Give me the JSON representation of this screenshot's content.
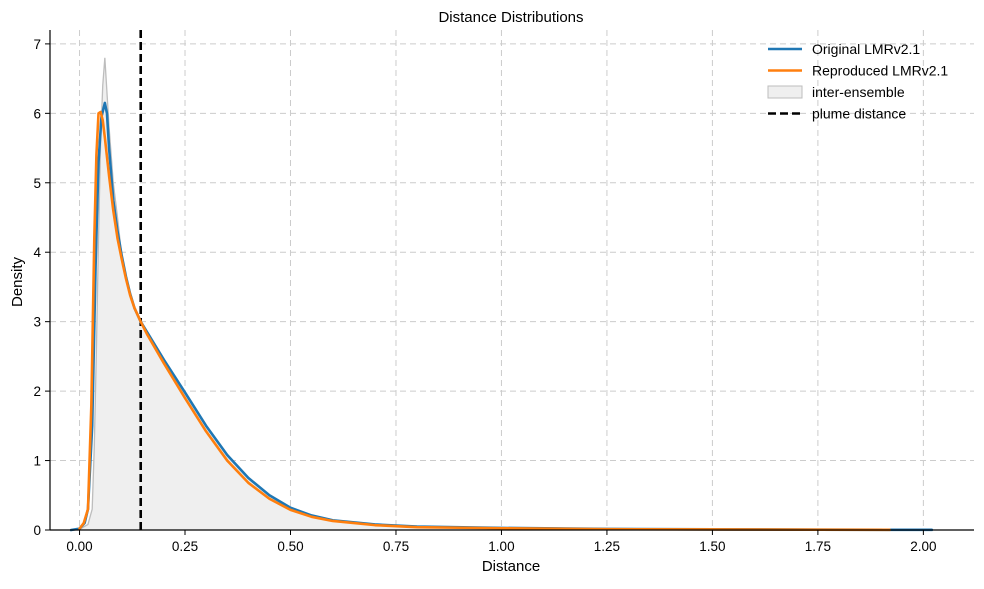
{
  "chart_data": {
    "type": "line",
    "title": "Distance Distributions",
    "xlabel": "Distance",
    "ylabel": "Density",
    "xlim": [
      -0.07,
      2.12
    ],
    "ylim": [
      0,
      7.2
    ],
    "x_ticks": [
      0.0,
      0.25,
      0.5,
      0.75,
      1.0,
      1.25,
      1.5,
      1.75,
      2.0
    ],
    "x_tick_labels": [
      "0.00",
      "0.25",
      "0.50",
      "0.75",
      "1.00",
      "1.25",
      "1.50",
      "1.75",
      "2.00"
    ],
    "y_ticks": [
      0,
      1,
      2,
      3,
      4,
      5,
      6,
      7
    ],
    "y_tick_labels": [
      "0",
      "1",
      "2",
      "3",
      "4",
      "5",
      "6",
      "7"
    ],
    "grid": true,
    "legend_position": "top-right",
    "vertical_line": {
      "name": "plume distance",
      "x": 0.145,
      "color": "#000000",
      "style": "dashed"
    },
    "series": [
      {
        "name": "Original LMRv2.1",
        "kind": "line",
        "color": "#1f77b4",
        "points": [
          [
            -0.02,
            0.0
          ],
          [
            0.0,
            0.02
          ],
          [
            0.012,
            0.1
          ],
          [
            0.02,
            0.3
          ],
          [
            0.03,
            1.5
          ],
          [
            0.038,
            3.8
          ],
          [
            0.045,
            5.3
          ],
          [
            0.052,
            5.95
          ],
          [
            0.06,
            6.15
          ],
          [
            0.065,
            6.0
          ],
          [
            0.07,
            5.5
          ],
          [
            0.08,
            4.75
          ],
          [
            0.09,
            4.3
          ],
          [
            0.1,
            3.95
          ],
          [
            0.11,
            3.65
          ],
          [
            0.12,
            3.4
          ],
          [
            0.13,
            3.2
          ],
          [
            0.145,
            3.0
          ],
          [
            0.16,
            2.85
          ],
          [
            0.2,
            2.45
          ],
          [
            0.25,
            1.98
          ],
          [
            0.3,
            1.5
          ],
          [
            0.35,
            1.08
          ],
          [
            0.4,
            0.75
          ],
          [
            0.45,
            0.5
          ],
          [
            0.5,
            0.32
          ],
          [
            0.55,
            0.21
          ],
          [
            0.6,
            0.14
          ],
          [
            0.7,
            0.08
          ],
          [
            0.8,
            0.05
          ],
          [
            1.0,
            0.03
          ],
          [
            1.25,
            0.015
          ],
          [
            1.5,
            0.01
          ],
          [
            1.75,
            0.005
          ],
          [
            2.02,
            0.002
          ]
        ]
      },
      {
        "name": "Reproduced LMRv2.1",
        "kind": "line",
        "color": "#ff7f0e",
        "points": [
          [
            0.0,
            0.02
          ],
          [
            0.01,
            0.1
          ],
          [
            0.02,
            0.3
          ],
          [
            0.028,
            1.8
          ],
          [
            0.035,
            4.2
          ],
          [
            0.04,
            5.4
          ],
          [
            0.045,
            6.0
          ],
          [
            0.05,
            6.02
          ],
          [
            0.055,
            5.9
          ],
          [
            0.06,
            5.65
          ],
          [
            0.07,
            5.1
          ],
          [
            0.08,
            4.6
          ],
          [
            0.09,
            4.2
          ],
          [
            0.1,
            3.9
          ],
          [
            0.11,
            3.62
          ],
          [
            0.12,
            3.38
          ],
          [
            0.13,
            3.2
          ],
          [
            0.145,
            3.0
          ],
          [
            0.16,
            2.82
          ],
          [
            0.2,
            2.4
          ],
          [
            0.25,
            1.9
          ],
          [
            0.3,
            1.42
          ],
          [
            0.35,
            1.0
          ],
          [
            0.4,
            0.68
          ],
          [
            0.45,
            0.45
          ],
          [
            0.5,
            0.29
          ],
          [
            0.55,
            0.19
          ],
          [
            0.6,
            0.13
          ],
          [
            0.7,
            0.07
          ],
          [
            0.8,
            0.04
          ],
          [
            1.0,
            0.025
          ],
          [
            1.25,
            0.012
          ],
          [
            1.5,
            0.008
          ],
          [
            1.75,
            0.004
          ],
          [
            1.92,
            0.002
          ]
        ]
      },
      {
        "name": "inter-ensemble",
        "kind": "area",
        "color": "#aaaaaa",
        "points": [
          [
            -0.02,
            0.0
          ],
          [
            0.0,
            0.01
          ],
          [
            0.02,
            0.08
          ],
          [
            0.03,
            0.3
          ],
          [
            0.035,
            1.2
          ],
          [
            0.04,
            2.6
          ],
          [
            0.045,
            4.2
          ],
          [
            0.05,
            5.6
          ],
          [
            0.055,
            6.4
          ],
          [
            0.06,
            6.8
          ],
          [
            0.065,
            6.3
          ],
          [
            0.07,
            5.8
          ],
          [
            0.08,
            5.0
          ],
          [
            0.09,
            4.5
          ],
          [
            0.1,
            3.95
          ],
          [
            0.11,
            3.65
          ],
          [
            0.12,
            3.4
          ],
          [
            0.13,
            3.2
          ],
          [
            0.145,
            3.0
          ],
          [
            0.16,
            2.85
          ],
          [
            0.2,
            2.45
          ],
          [
            0.25,
            1.98
          ],
          [
            0.3,
            1.5
          ],
          [
            0.35,
            1.08
          ],
          [
            0.4,
            0.75
          ],
          [
            0.45,
            0.5
          ],
          [
            0.5,
            0.32
          ],
          [
            0.55,
            0.21
          ],
          [
            0.6,
            0.14
          ],
          [
            0.7,
            0.08
          ],
          [
            0.8,
            0.05
          ],
          [
            1.0,
            0.03
          ],
          [
            1.25,
            0.015
          ],
          [
            1.5,
            0.01
          ],
          [
            1.75,
            0.005
          ],
          [
            2.0,
            0.002
          ]
        ]
      }
    ],
    "legend": [
      {
        "label": "Original LMRv2.1",
        "kind": "line",
        "color": "#1f77b4"
      },
      {
        "label": "Reproduced LMRv2.1",
        "kind": "line",
        "color": "#ff7f0e"
      },
      {
        "label": "inter-ensemble",
        "kind": "patch",
        "color": "#aaaaaa"
      },
      {
        "label": "plume distance",
        "kind": "dashed-line",
        "color": "#000000"
      }
    ]
  }
}
